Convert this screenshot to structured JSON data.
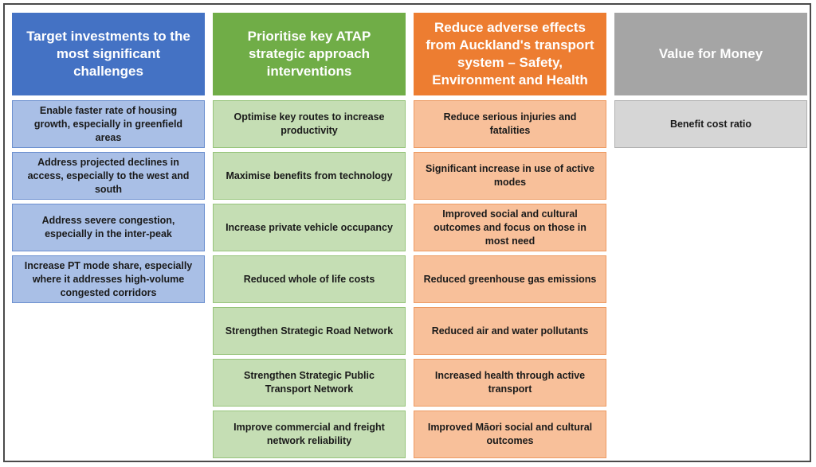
{
  "columns": [
    {
      "header": "Target investments to the most significant challenges",
      "color": "#4472c4",
      "items": [
        "Enable faster rate of housing growth, especially in greenfield areas",
        "Address projected declines in access, especially to the west and south",
        "Address severe congestion, especially in the inter-peak",
        "Increase PT mode share, especially where it addresses high-volume congested corridors"
      ]
    },
    {
      "header": "Prioritise key ATAP strategic approach interventions",
      "color": "#70ad47",
      "items": [
        "Optimise key routes to increase productivity",
        "Maximise benefits from technology",
        "Increase private vehicle occupancy",
        "Reduced whole of life costs",
        "Strengthen Strategic Road Network",
        "Strengthen Strategic Public Transport Network",
        "Improve commercial and freight network reliability"
      ]
    },
    {
      "header": "Reduce adverse effects from Auckland's transport system – Safety, Environment and Health",
      "color": "#ed7d31",
      "items": [
        "Reduce serious injuries and fatalities",
        "Significant increase in use of active modes",
        "Improved social and cultural outcomes and focus on those in most need",
        "Reduced greenhouse gas emissions",
        "Reduced air and water pollutants",
        "Increased health through active transport",
        "Improved Māori social and cultural outcomes"
      ]
    },
    {
      "header": "Value for Money",
      "color": "#a5a5a5",
      "items": [
        "Benefit cost ratio"
      ]
    }
  ]
}
